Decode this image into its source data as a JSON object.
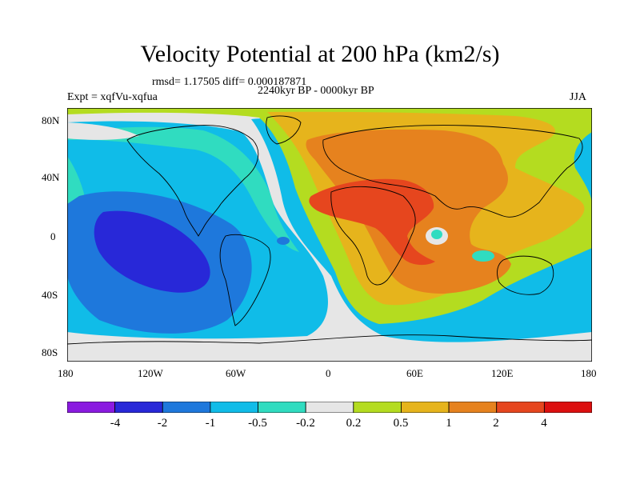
{
  "title": "Velocity Potential at 200 hPa (km2/s)",
  "stats_line": "rmsd= 1.17505 diff= 0.000187871",
  "experiment": "Expt = xqfVu-xqfua",
  "period": "2240kyr BP - 0000kyr BP",
  "season": "JJA",
  "lat_labels": [
    "80N",
    "40N",
    "0",
    "40S",
    "80S"
  ],
  "lon_labels": [
    "180",
    "120W",
    "60W",
    "0",
    "60E",
    "120E",
    "180"
  ],
  "colorbar": {
    "colors": [
      "#8a1ae0",
      "#2828d8",
      "#1e78dc",
      "#10bce8",
      "#30dcc0",
      "#e6e6e6",
      "#b4dc20",
      "#e6b41c",
      "#e6821e",
      "#e6461e",
      "#dc0f0f"
    ],
    "labels": [
      "-4",
      "-2",
      "-1",
      "-0.5",
      "-0.2",
      "0.2",
      "0.5",
      "1",
      "2",
      "4"
    ]
  }
}
